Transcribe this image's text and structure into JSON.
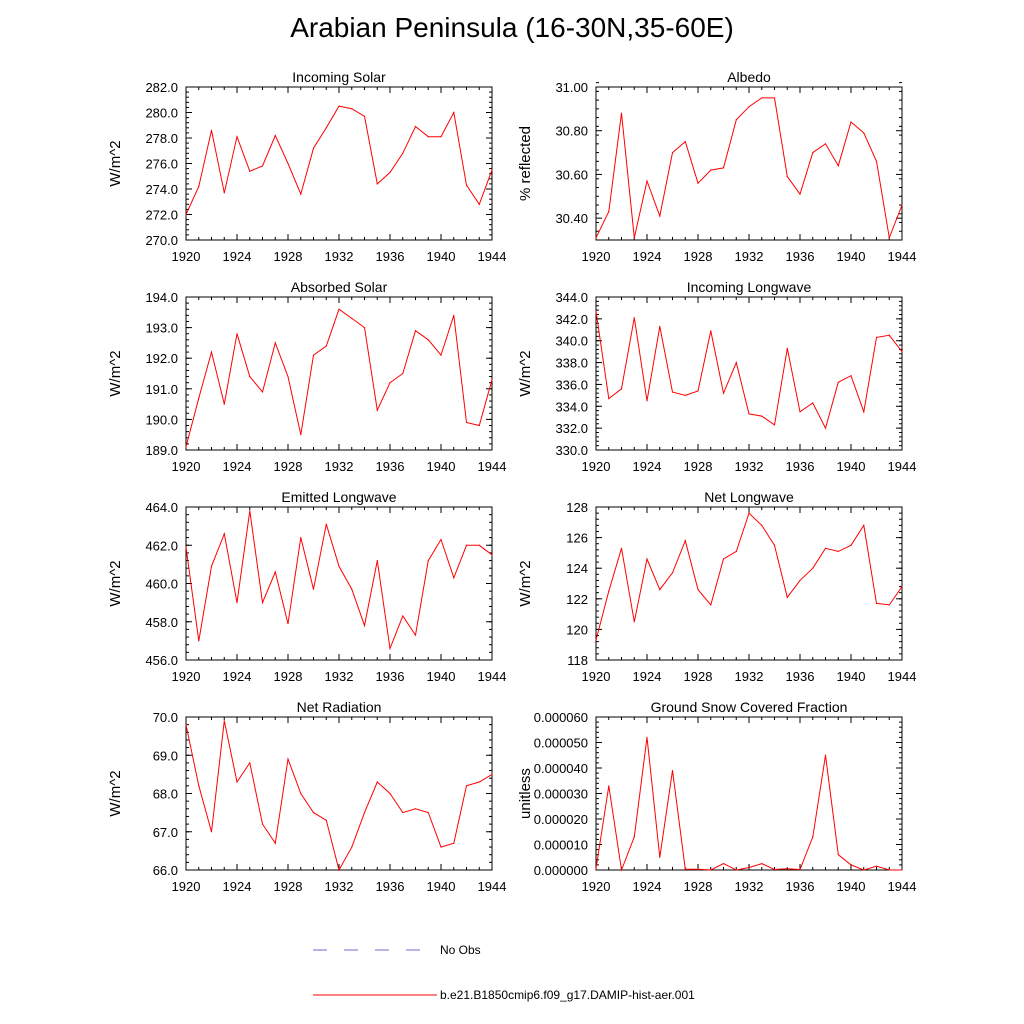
{
  "figure_title": "Arabian Peninsula (16-30N,35-60E)",
  "colors": {
    "model_line": "#ff0000",
    "obs_line": "#6b6bd6"
  },
  "legend": {
    "obs_label": "No Obs",
    "model_label": "b.e21.B1850cmip6.f09_g17.DAMIP-hist-aer.001"
  },
  "chart_data": [
    {
      "type": "line",
      "title": "Incoming Solar",
      "ylabel": "W/m^2",
      "xlim": [
        1920,
        1944
      ],
      "ylim": [
        270,
        282
      ],
      "x_ticks": [
        1920,
        1924,
        1928,
        1932,
        1936,
        1940,
        1944
      ],
      "y_ticks": [
        270,
        272,
        274,
        276,
        278,
        280,
        282
      ],
      "y_decimals": 1,
      "series": [
        {
          "x": [
            1920,
            1921,
            1922,
            1923,
            1924,
            1925,
            1926,
            1927,
            1928,
            1929,
            1930,
            1931,
            1932,
            1933,
            1934,
            1935,
            1936,
            1937,
            1938,
            1939,
            1940,
            1941,
            1942,
            1943,
            1944
          ],
          "y": [
            272.0,
            274.2,
            278.6,
            273.7,
            278.1,
            275.4,
            275.8,
            278.2,
            276.0,
            273.6,
            277.2,
            278.8,
            280.5,
            280.3,
            279.7,
            274.4,
            275.3,
            276.8,
            278.9,
            278.1,
            278.1,
            280.0,
            274.3,
            272.8,
            275.5
          ]
        }
      ]
    },
    {
      "type": "line",
      "title": "Albedo",
      "ylabel": "% reflected",
      "xlim": [
        1920,
        1944
      ],
      "ylim": [
        30.3,
        31.0
      ],
      "x_ticks": [
        1920,
        1924,
        1928,
        1932,
        1936,
        1940,
        1944
      ],
      "y_ticks": [
        30.4,
        30.6,
        30.8,
        31.0
      ],
      "y_decimals": 2,
      "series": [
        {
          "x": [
            1920,
            1921,
            1922,
            1923,
            1924,
            1925,
            1926,
            1927,
            1928,
            1929,
            1930,
            1931,
            1932,
            1933,
            1934,
            1935,
            1936,
            1937,
            1938,
            1939,
            1940,
            1941,
            1942,
            1943,
            1944
          ],
          "y": [
            30.31,
            30.43,
            30.88,
            30.31,
            30.57,
            30.41,
            30.7,
            30.75,
            30.56,
            30.62,
            30.63,
            30.85,
            30.91,
            30.95,
            30.95,
            30.59,
            30.51,
            30.7,
            30.74,
            30.64,
            30.84,
            30.79,
            30.66,
            30.31,
            30.46
          ]
        }
      ]
    },
    {
      "type": "line",
      "title": "Absorbed Solar",
      "ylabel": "W/m^2",
      "xlim": [
        1920,
        1944
      ],
      "ylim": [
        189,
        194
      ],
      "x_ticks": [
        1920,
        1924,
        1928,
        1932,
        1936,
        1940,
        1944
      ],
      "y_ticks": [
        189,
        190,
        191,
        192,
        193,
        194
      ],
      "y_decimals": 1,
      "series": [
        {
          "x": [
            1920,
            1921,
            1922,
            1923,
            1924,
            1925,
            1926,
            1927,
            1928,
            1929,
            1930,
            1931,
            1932,
            1933,
            1934,
            1935,
            1936,
            1937,
            1938,
            1939,
            1940,
            1941,
            1942,
            1943,
            1944
          ],
          "y": [
            189.1,
            190.7,
            192.2,
            190.5,
            192.8,
            191.4,
            190.9,
            192.5,
            191.4,
            189.5,
            192.1,
            192.4,
            193.6,
            193.3,
            193.0,
            190.3,
            191.2,
            191.5,
            192.9,
            192.6,
            192.1,
            193.4,
            189.9,
            189.8,
            191.3
          ]
        }
      ]
    },
    {
      "type": "line",
      "title": "Incoming Longwave",
      "ylabel": "W/m^2",
      "xlim": [
        1920,
        1944
      ],
      "ylim": [
        330,
        344
      ],
      "x_ticks": [
        1920,
        1924,
        1928,
        1932,
        1936,
        1940,
        1944
      ],
      "y_ticks": [
        330,
        332,
        334,
        336,
        338,
        340,
        342,
        344
      ],
      "y_decimals": 1,
      "series": [
        {
          "x": [
            1920,
            1921,
            1922,
            1923,
            1924,
            1925,
            1926,
            1927,
            1928,
            1929,
            1930,
            1931,
            1932,
            1933,
            1934,
            1935,
            1936,
            1937,
            1938,
            1939,
            1940,
            1941,
            1942,
            1943,
            1944
          ],
          "y": [
            342.7,
            334.7,
            335.6,
            342.1,
            334.5,
            341.3,
            335.3,
            335.0,
            335.4,
            340.9,
            335.2,
            338.0,
            333.3,
            333.1,
            332.3,
            339.3,
            333.5,
            334.3,
            332.0,
            336.2,
            336.8,
            333.5,
            340.3,
            340.5,
            339.0
          ]
        }
      ]
    },
    {
      "type": "line",
      "title": "Emitted Longwave",
      "ylabel": "W/m^2",
      "xlim": [
        1920,
        1944
      ],
      "ylim": [
        456,
        464
      ],
      "x_ticks": [
        1920,
        1924,
        1928,
        1932,
        1936,
        1940,
        1944
      ],
      "y_ticks": [
        456,
        458,
        460,
        462,
        464
      ],
      "y_decimals": 1,
      "series": [
        {
          "x": [
            1920,
            1921,
            1922,
            1923,
            1924,
            1925,
            1926,
            1927,
            1928,
            1929,
            1930,
            1931,
            1932,
            1933,
            1934,
            1935,
            1936,
            1937,
            1938,
            1939,
            1940,
            1941,
            1942,
            1943,
            1944
          ],
          "y": [
            461.9,
            457.0,
            460.9,
            462.6,
            459.0,
            463.8,
            459.0,
            460.6,
            457.9,
            462.4,
            459.7,
            463.1,
            460.9,
            459.7,
            457.8,
            461.2,
            456.6,
            458.3,
            457.3,
            461.2,
            462.3,
            460.3,
            462.0,
            462.0,
            461.5
          ]
        }
      ]
    },
    {
      "type": "line",
      "title": "Net Longwave",
      "ylabel": "W/m^2",
      "xlim": [
        1920,
        1944
      ],
      "ylim": [
        118,
        128
      ],
      "x_ticks": [
        1920,
        1924,
        1928,
        1932,
        1936,
        1940,
        1944
      ],
      "y_ticks": [
        118,
        120,
        122,
        124,
        126,
        128
      ],
      "y_decimals": 0,
      "series": [
        {
          "x": [
            1920,
            1921,
            1922,
            1923,
            1924,
            1925,
            1926,
            1927,
            1928,
            1929,
            1930,
            1931,
            1932,
            1933,
            1934,
            1935,
            1936,
            1937,
            1938,
            1939,
            1940,
            1941,
            1942,
            1943,
            1944
          ],
          "y": [
            119.3,
            122.5,
            125.3,
            120.5,
            124.6,
            122.6,
            123.7,
            125.8,
            122.6,
            121.6,
            124.6,
            125.1,
            127.6,
            126.8,
            125.5,
            122.1,
            123.2,
            124.0,
            125.3,
            125.1,
            125.5,
            126.8,
            121.7,
            121.6,
            122.8
          ]
        }
      ]
    },
    {
      "type": "line",
      "title": "Net Radiation",
      "ylabel": "W/m^2",
      "xlim": [
        1920,
        1944
      ],
      "ylim": [
        66,
        70
      ],
      "x_ticks": [
        1920,
        1924,
        1928,
        1932,
        1936,
        1940,
        1944
      ],
      "y_ticks": [
        66,
        67,
        68,
        69,
        70
      ],
      "y_decimals": 1,
      "series": [
        {
          "x": [
            1920,
            1921,
            1922,
            1923,
            1924,
            1925,
            1926,
            1927,
            1928,
            1929,
            1930,
            1931,
            1932,
            1933,
            1934,
            1935,
            1936,
            1937,
            1938,
            1939,
            1940,
            1941,
            1942,
            1943,
            1944
          ],
          "y": [
            69.8,
            68.2,
            67.0,
            69.9,
            68.3,
            68.8,
            67.2,
            66.7,
            68.9,
            68.0,
            67.5,
            67.3,
            66.0,
            66.6,
            67.5,
            68.3,
            68.0,
            67.5,
            67.6,
            67.5,
            66.6,
            66.7,
            68.2,
            68.3,
            68.5
          ]
        }
      ]
    },
    {
      "type": "line",
      "title": "Ground Snow Covered Fraction",
      "ylabel": "unitless",
      "xlim": [
        1920,
        1944
      ],
      "ylim": [
        0,
        6e-05
      ],
      "x_ticks": [
        1920,
        1924,
        1928,
        1932,
        1936,
        1940,
        1944
      ],
      "y_ticks": [
        0,
        1e-05,
        2e-05,
        3e-05,
        4e-05,
        5e-05,
        6e-05
      ],
      "y_decimals": 6,
      "series": [
        {
          "x": [
            1920,
            1921,
            1922,
            1923,
            1924,
            1925,
            1926,
            1927,
            1928,
            1929,
            1930,
            1931,
            1932,
            1933,
            1934,
            1935,
            1936,
            1937,
            1938,
            1939,
            1940,
            1941,
            1942,
            1943,
            1944
          ],
          "y": [
            5e-07,
            3.3e-05,
            0.0,
            1.3e-05,
            5.2e-05,
            5e-06,
            3.9e-05,
            3e-07,
            3e-07,
            0.0,
            2.5e-06,
            0.0,
            1e-06,
            2.5e-06,
            2e-07,
            5e-07,
            2e-07,
            1.3e-05,
            4.5e-05,
            6e-06,
            2e-06,
            0.0,
            1.5e-06,
            0.0,
            0.0
          ]
        }
      ]
    }
  ]
}
